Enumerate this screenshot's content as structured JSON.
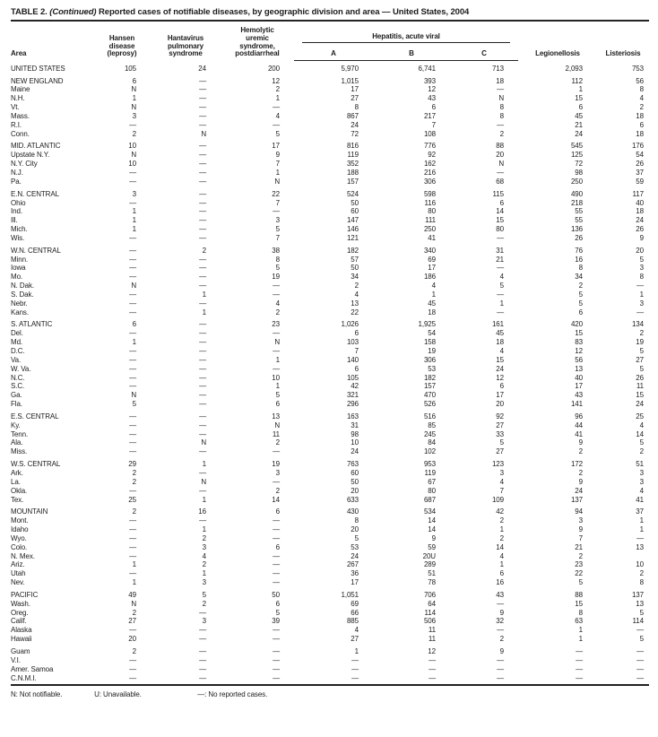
{
  "title": {
    "label": "TABLE 2.",
    "continued": "(Continued)",
    "text": "Reported cases of notifiable diseases, by geographic division and area — United States, 2004"
  },
  "header": {
    "area": "Area",
    "hansen": "Hansen\ndisease\n(leprosy)",
    "hantavirus": "Hantavirus\npulmonary\nsyndrome",
    "hus": "Hemolytic\nuremic\nsyndrome,\npostdiarrheal",
    "hepatitis_spanner": "Hepatitis, acute viral",
    "hep_a": "A",
    "hep_b": "B",
    "hep_c": "C",
    "legionellosis": "Legionellosis",
    "listeriosis": "Listeriosis"
  },
  "sections": [
    {
      "rows": [
        {
          "area": "UNITED STATES",
          "values": [
            "105",
            "24",
            "200",
            "5,970",
            "6,741",
            "713",
            "2,093",
            "753"
          ]
        }
      ]
    },
    {
      "rows": [
        {
          "area": "NEW ENGLAND",
          "values": [
            "6",
            "—",
            "12",
            "1,015",
            "393",
            "18",
            "112",
            "56"
          ]
        },
        {
          "area": "Maine",
          "values": [
            "N",
            "—",
            "2",
            "17",
            "12",
            "—",
            "1",
            "8"
          ]
        },
        {
          "area": "N.H.",
          "values": [
            "1",
            "—",
            "1",
            "27",
            "43",
            "N",
            "15",
            "4"
          ]
        },
        {
          "area": "Vt.",
          "values": [
            "N",
            "—",
            "—",
            "8",
            "6",
            "8",
            "6",
            "2"
          ]
        },
        {
          "area": "Mass.",
          "values": [
            "3",
            "—",
            "4",
            "867",
            "217",
            "8",
            "45",
            "18"
          ]
        },
        {
          "area": "R.I.",
          "values": [
            "—",
            "—",
            "—",
            "24",
            "7",
            "—",
            "21",
            "6"
          ]
        },
        {
          "area": "Conn.",
          "values": [
            "2",
            "N",
            "5",
            "72",
            "108",
            "2",
            "24",
            "18"
          ]
        }
      ]
    },
    {
      "rows": [
        {
          "area": "MID. ATLANTIC",
          "values": [
            "10",
            "—",
            "17",
            "816",
            "776",
            "88",
            "545",
            "176"
          ]
        },
        {
          "area": "Upstate N.Y.",
          "values": [
            "N",
            "—",
            "9",
            "119",
            "92",
            "20",
            "125",
            "54"
          ]
        },
        {
          "area": "N.Y. City",
          "values": [
            "10",
            "—",
            "7",
            "352",
            "162",
            "N",
            "72",
            "26"
          ]
        },
        {
          "area": "N.J.",
          "values": [
            "—",
            "—",
            "1",
            "188",
            "216",
            "—",
            "98",
            "37"
          ]
        },
        {
          "area": "Pa.",
          "values": [
            "—",
            "—",
            "N",
            "157",
            "306",
            "68",
            "250",
            "59"
          ]
        }
      ]
    },
    {
      "rows": [
        {
          "area": "E.N. CENTRAL",
          "values": [
            "3",
            "—",
            "22",
            "524",
            "598",
            "115",
            "490",
            "117"
          ]
        },
        {
          "area": "Ohio",
          "values": [
            "—",
            "—",
            "7",
            "50",
            "116",
            "6",
            "218",
            "40"
          ]
        },
        {
          "area": "Ind.",
          "values": [
            "1",
            "—",
            "—",
            "60",
            "80",
            "14",
            "55",
            "18"
          ]
        },
        {
          "area": "Ill.",
          "values": [
            "1",
            "—",
            "3",
            "147",
            "111",
            "15",
            "55",
            "24"
          ]
        },
        {
          "area": "Mich.",
          "values": [
            "1",
            "—",
            "5",
            "146",
            "250",
            "80",
            "136",
            "26"
          ]
        },
        {
          "area": "Wis.",
          "values": [
            "—",
            "—",
            "7",
            "121",
            "41",
            "—",
            "26",
            "9"
          ]
        }
      ]
    },
    {
      "rows": [
        {
          "area": "W.N. CENTRAL",
          "values": [
            "—",
            "2",
            "38",
            "182",
            "340",
            "31",
            "76",
            "20"
          ]
        },
        {
          "area": "Minn.",
          "values": [
            "—",
            "—",
            "8",
            "57",
            "69",
            "21",
            "16",
            "5"
          ]
        },
        {
          "area": "Iowa",
          "values": [
            "—",
            "—",
            "5",
            "50",
            "17",
            "—",
            "8",
            "3"
          ]
        },
        {
          "area": "Mo.",
          "values": [
            "—",
            "—",
            "19",
            "34",
            "186",
            "4",
            "34",
            "8"
          ]
        },
        {
          "area": "N. Dak.",
          "values": [
            "N",
            "—",
            "—",
            "2",
            "4",
            "5",
            "2",
            "—"
          ]
        },
        {
          "area": "S. Dak.",
          "values": [
            "—",
            "1",
            "—",
            "4",
            "1",
            "—",
            "5",
            "1"
          ]
        },
        {
          "area": "Nebr.",
          "values": [
            "—",
            "—",
            "4",
            "13",
            "45",
            "1",
            "5",
            "3"
          ]
        },
        {
          "area": "Kans.",
          "values": [
            "—",
            "1",
            "2",
            "22",
            "18",
            "—",
            "6",
            "—"
          ]
        }
      ]
    },
    {
      "rows": [
        {
          "area": "S. ATLANTIC",
          "values": [
            "6",
            "—",
            "23",
            "1,026",
            "1,925",
            "161",
            "420",
            "134"
          ]
        },
        {
          "area": "Del.",
          "values": [
            "—",
            "—",
            "—",
            "6",
            "54",
            "45",
            "15",
            "2"
          ]
        },
        {
          "area": "Md.",
          "values": [
            "1",
            "—",
            "N",
            "103",
            "158",
            "18",
            "83",
            "19"
          ]
        },
        {
          "area": "D.C.",
          "values": [
            "—",
            "—",
            "—",
            "7",
            "19",
            "4",
            "12",
            "5"
          ]
        },
        {
          "area": "Va.",
          "values": [
            "—",
            "—",
            "1",
            "140",
            "306",
            "15",
            "56",
            "27"
          ]
        },
        {
          "area": "W. Va.",
          "values": [
            "—",
            "—",
            "—",
            "6",
            "53",
            "24",
            "13",
            "5"
          ]
        },
        {
          "area": "N.C.",
          "values": [
            "—",
            "—",
            "10",
            "105",
            "182",
            "12",
            "40",
            "26"
          ]
        },
        {
          "area": "S.C.",
          "values": [
            "—",
            "—",
            "1",
            "42",
            "157",
            "6",
            "17",
            "11"
          ]
        },
        {
          "area": "Ga.",
          "values": [
            "N",
            "—",
            "5",
            "321",
            "470",
            "17",
            "43",
            "15"
          ]
        },
        {
          "area": "Fla.",
          "values": [
            "5",
            "—",
            "6",
            "296",
            "526",
            "20",
            "141",
            "24"
          ]
        }
      ]
    },
    {
      "rows": [
        {
          "area": "E.S. CENTRAL",
          "values": [
            "—",
            "—",
            "13",
            "163",
            "516",
            "92",
            "96",
            "25"
          ]
        },
        {
          "area": "Ky.",
          "values": [
            "—",
            "—",
            "N",
            "31",
            "85",
            "27",
            "44",
            "4"
          ]
        },
        {
          "area": "Tenn.",
          "values": [
            "—",
            "—",
            "11",
            "98",
            "245",
            "33",
            "41",
            "14"
          ]
        },
        {
          "area": "Ala.",
          "values": [
            "—",
            "N",
            "2",
            "10",
            "84",
            "5",
            "9",
            "5"
          ]
        },
        {
          "area": "Miss.",
          "values": [
            "—",
            "—",
            "—",
            "24",
            "102",
            "27",
            "2",
            "2"
          ]
        }
      ]
    },
    {
      "rows": [
        {
          "area": "W.S. CENTRAL",
          "values": [
            "29",
            "1",
            "19",
            "763",
            "953",
            "123",
            "172",
            "51"
          ]
        },
        {
          "area": "Ark.",
          "values": [
            "2",
            "—",
            "3",
            "60",
            "119",
            "3",
            "2",
            "3"
          ]
        },
        {
          "area": "La.",
          "values": [
            "2",
            "N",
            "—",
            "50",
            "67",
            "4",
            "9",
            "3"
          ]
        },
        {
          "area": "Okla.",
          "values": [
            "—",
            "—",
            "2",
            "20",
            "80",
            "7",
            "24",
            "4"
          ]
        },
        {
          "area": "Tex.",
          "values": [
            "25",
            "1",
            "14",
            "633",
            "687",
            "109",
            "137",
            "41"
          ]
        }
      ]
    },
    {
      "rows": [
        {
          "area": "MOUNTAIN",
          "values": [
            "2",
            "16",
            "6",
            "430",
            "534",
            "42",
            "94",
            "37"
          ]
        },
        {
          "area": "Mont.",
          "values": [
            "—",
            "—",
            "—",
            "8",
            "14",
            "2",
            "3",
            "1"
          ]
        },
        {
          "area": "Idaho",
          "values": [
            "—",
            "1",
            "—",
            "20",
            "14",
            "1",
            "9",
            "1"
          ]
        },
        {
          "area": "Wyo.",
          "values": [
            "—",
            "2",
            "—",
            "5",
            "9",
            "2",
            "7",
            "—"
          ]
        },
        {
          "area": "Colo.",
          "values": [
            "—",
            "3",
            "6",
            "53",
            "59",
            "14",
            "21",
            "13"
          ]
        },
        {
          "area": "N. Mex.",
          "values": [
            "—",
            "4",
            "—",
            "24",
            "20U",
            "4",
            "2",
            ""
          ]
        },
        {
          "area": "Ariz.",
          "values": [
            "1",
            "2",
            "—",
            "267",
            "289",
            "1",
            "23",
            "10"
          ]
        },
        {
          "area": "Utah",
          "values": [
            "—",
            "1",
            "—",
            "36",
            "51",
            "6",
            "22",
            "2"
          ]
        },
        {
          "area": "Nev.",
          "values": [
            "1",
            "3",
            "—",
            "17",
            "78",
            "16",
            "5",
            "8"
          ]
        }
      ]
    },
    {
      "rows": [
        {
          "area": "PACIFIC",
          "values": [
            "49",
            "5",
            "50",
            "1,051",
            "706",
            "43",
            "88",
            "137"
          ]
        },
        {
          "area": "Wash.",
          "values": [
            "N",
            "2",
            "6",
            "69",
            "64",
            "—",
            "15",
            "13"
          ]
        },
        {
          "area": "Oreg.",
          "values": [
            "2",
            "—",
            "5",
            "66",
            "114",
            "9",
            "8",
            "5"
          ]
        },
        {
          "area": "Calif.",
          "values": [
            "27",
            "3",
            "39",
            "885",
            "506",
            "32",
            "63",
            "114"
          ]
        },
        {
          "area": "Alaska",
          "values": [
            "—",
            "—",
            "—",
            "4",
            "11",
            "—",
            "1",
            "—"
          ]
        },
        {
          "area": "Hawaii",
          "values": [
            "20",
            "—",
            "—",
            "27",
            "11",
            "2",
            "1",
            "5"
          ]
        }
      ]
    },
    {
      "rows": [
        {
          "area": "Guam",
          "values": [
            "2",
            "—",
            "—",
            "1",
            "12",
            "9",
            "—",
            "—"
          ]
        },
        {
          "area": "V.I.",
          "values": [
            "—",
            "—",
            "—",
            "—",
            "—",
            "—",
            "—",
            "—"
          ]
        },
        {
          "area": "Amer. Samoa",
          "values": [
            "—",
            "—",
            "—",
            "—",
            "—",
            "—",
            "—",
            "—"
          ]
        },
        {
          "area": "C.N.M.I.",
          "values": [
            "—",
            "—",
            "—",
            "—",
            "—",
            "—",
            "—",
            "—"
          ]
        }
      ]
    }
  ],
  "footnotes": [
    "N: Not notifiable.",
    "U: Unavailable.",
    "—: No reported cases."
  ]
}
